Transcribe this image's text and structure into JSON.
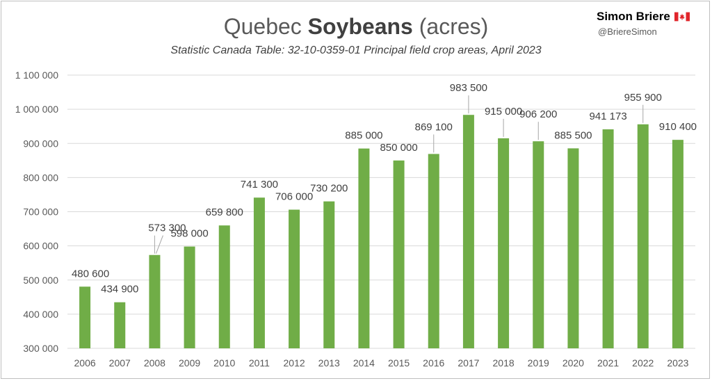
{
  "header": {
    "title_normal": "Quebec",
    "title_bold": "Soybeans",
    "title_unit": "(acres)",
    "subtitle": "Statistic Canada Table: 32-10-0359-01 Principal field crop areas, April 2023"
  },
  "branding": {
    "name": "Simon Briere",
    "handle": "@BriereSimon",
    "flag_icon": "canada-flag-icon"
  },
  "colors": {
    "bar": "#70ad47",
    "gridline": "#d9d9d9",
    "axis_text": "#595959",
    "label_text": "#404040",
    "flag_red": "#e0252b"
  },
  "chart_data": {
    "type": "bar",
    "title": "Quebec Soybeans (acres)",
    "subtitle": "Statistic Canada Table: 32-10-0359-01 Principal field crop areas, April 2023",
    "categories": [
      "2006",
      "2007",
      "2008",
      "2009",
      "2010",
      "2011",
      "2012",
      "2013",
      "2014",
      "2015",
      "2016",
      "2017",
      "2018",
      "2019",
      "2020",
      "2021",
      "2022",
      "2023"
    ],
    "values": [
      480600,
      434900,
      573300,
      598000,
      659800,
      741300,
      706000,
      730200,
      885000,
      850000,
      869100,
      983500,
      915000,
      906200,
      885500,
      941173,
      955900,
      910400
    ],
    "value_labels": [
      "480 600",
      "434 900",
      "573 300",
      "598 000",
      "659 800",
      "741 300",
      "706 000",
      "730 200",
      "885 000",
      "850 000",
      "869 100",
      "983 500",
      "915 000",
      "906 200",
      "885 500",
      "941 173",
      "955 900",
      "910 400"
    ],
    "xlabel": "",
    "ylabel": "",
    "ylim": [
      300000,
      1100000
    ],
    "yticks": [
      300000,
      400000,
      500000,
      600000,
      700000,
      800000,
      900000,
      1000000,
      1100000
    ],
    "ytick_labels": [
      "300 000",
      "400 000",
      "500 000",
      "600 000",
      "700 000",
      "800 000",
      "900 000",
      "1 000 000",
      "1 100 000"
    ],
    "grid": true,
    "legend": false
  }
}
